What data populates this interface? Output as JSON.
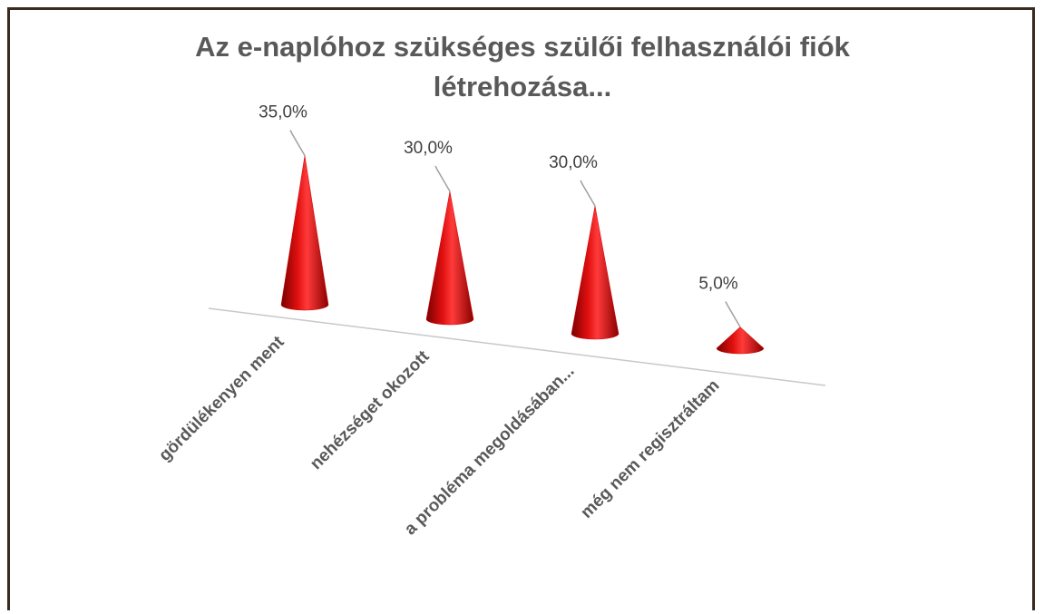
{
  "chart_data": {
    "type": "cone",
    "title": "Az e-naplóhoz szükséges szülői felhasználói fiók létrehozása...",
    "categories": [
      "gördülékenyen ment",
      "nehézséget okozott",
      "a probléma megoldásában...",
      "még nem regisztráltam"
    ],
    "values": [
      35,
      30,
      30,
      5
    ],
    "value_labels": [
      "35,0%",
      "30,0%",
      "30,0%",
      "5,0%"
    ],
    "color": "#d40000"
  }
}
